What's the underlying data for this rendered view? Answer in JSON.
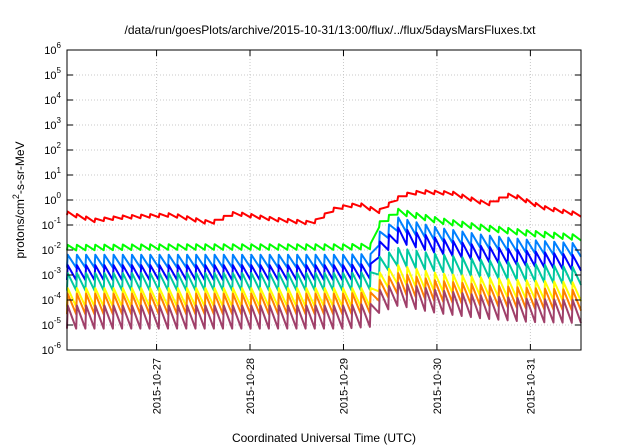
{
  "chart_data": {
    "type": "line",
    "title": "/data/run/goesPlots/archive/2015-10-31/13:00/flux/../flux/5daysMarsFluxes.txt",
    "xlabel": "Coordinated Universal Time (UTC)",
    "ylabel": {
      "base": "protons/cm",
      "sup": "2",
      "tail": "-s-sr-MeV"
    },
    "x_scale": "time",
    "xlim": [
      "2015-10-26T01:00",
      "2015-10-31T13:00"
    ],
    "x_ticks": [
      "2015-10-27",
      "2015-10-28",
      "2015-10-29",
      "2015-10-30",
      "2015-10-31"
    ],
    "y_scale": "log",
    "ylim": [
      1e-06,
      1000000.0
    ],
    "y_ticks": [
      {
        "base": "10",
        "exp": "-6"
      },
      {
        "base": "10",
        "exp": "-5"
      },
      {
        "base": "10",
        "exp": "-4"
      },
      {
        "base": "10",
        "exp": "-3"
      },
      {
        "base": "10",
        "exp": "-2"
      },
      {
        "base": "10",
        "exp": "-1"
      },
      {
        "base": "10",
        "exp": "0"
      },
      {
        "base": "10",
        "exp": "1"
      },
      {
        "base": "10",
        "exp": "2"
      },
      {
        "base": "10",
        "exp": "3"
      },
      {
        "base": "10",
        "exp": "4"
      },
      {
        "base": "10",
        "exp": "5"
      },
      {
        "base": "10",
        "exp": "6"
      }
    ],
    "grid": true,
    "legend": "none",
    "series": [
      {
        "color": "#ff0000",
        "points": [
          [
            "2015-10-26T01:00",
            0.35
          ],
          [
            "2015-10-26T08:00",
            0.18
          ],
          [
            "2015-10-26T15:00",
            0.24
          ],
          [
            "2015-10-27T04:00",
            0.3
          ],
          [
            "2015-10-27T14:00",
            0.14
          ],
          [
            "2015-10-27T20:00",
            0.35
          ],
          [
            "2015-10-28T06:00",
            0.2
          ],
          [
            "2015-10-28T16:00",
            0.14
          ],
          [
            "2015-10-28T22:00",
            0.55
          ],
          [
            "2015-10-29T04:00",
            0.8
          ],
          [
            "2015-10-29T09:00",
            0.4
          ],
          [
            "2015-10-29T15:00",
            1.8
          ],
          [
            "2015-10-29T20:00",
            2.5
          ],
          [
            "2015-10-30T04:00",
            2.2
          ],
          [
            "2015-10-30T13:00",
            0.8
          ],
          [
            "2015-10-30T19:00",
            2.0
          ],
          [
            "2015-10-31T03:00",
            0.6
          ],
          [
            "2015-10-31T13:00",
            0.3
          ]
        ],
        "teeth": 56,
        "tooth_ratio": 0.72
      },
      {
        "color": "#00ff00",
        "points": [
          [
            "2015-10-26T01:00",
            0.016
          ],
          [
            "2015-10-27T00:00",
            0.017
          ],
          [
            "2015-10-28T00:00",
            0.017
          ],
          [
            "2015-10-29T00:00",
            0.017
          ],
          [
            "2015-10-29T07:00",
            0.018
          ],
          [
            "2015-10-29T09:00",
            0.13
          ],
          [
            "2015-10-29T14:00",
            0.45
          ],
          [
            "2015-10-30T00:00",
            0.2
          ],
          [
            "2015-10-30T12:00",
            0.1
          ],
          [
            "2015-10-31T00:00",
            0.06
          ],
          [
            "2015-10-31T13:00",
            0.04
          ]
        ],
        "teeth": 56,
        "tooth_ratio": 0.6
      },
      {
        "color": "#0080ff",
        "points": [
          [
            "2015-10-26T01:00",
            0.0065
          ],
          [
            "2015-10-27T00:00",
            0.0065
          ],
          [
            "2015-10-28T00:00",
            0.0065
          ],
          [
            "2015-10-29T00:00",
            0.0065
          ],
          [
            "2015-10-29T07:00",
            0.007
          ],
          [
            "2015-10-29T09:00",
            0.05
          ],
          [
            "2015-10-29T14:00",
            0.2
          ],
          [
            "2015-10-30T00:00",
            0.08
          ],
          [
            "2015-10-30T12:00",
            0.04
          ],
          [
            "2015-10-31T00:00",
            0.025
          ],
          [
            "2015-10-31T13:00",
            0.018
          ]
        ],
        "teeth": 56,
        "tooth_ratio": 0.3
      },
      {
        "color": "#0000ff",
        "points": [
          [
            "2015-10-26T01:00",
            0.0025
          ],
          [
            "2015-10-27T00:00",
            0.0025
          ],
          [
            "2015-10-28T00:00",
            0.0025
          ],
          [
            "2015-10-29T00:00",
            0.0025
          ],
          [
            "2015-10-29T07:00",
            0.0028
          ],
          [
            "2015-10-29T09:00",
            0.02
          ],
          [
            "2015-10-29T14:00",
            0.08
          ],
          [
            "2015-10-30T00:00",
            0.03
          ],
          [
            "2015-10-30T12:00",
            0.014
          ],
          [
            "2015-10-31T00:00",
            0.009
          ],
          [
            "2015-10-31T13:00",
            0.006
          ]
        ],
        "teeth": 56,
        "tooth_ratio": 0.25
      },
      {
        "color": "#00c8a0",
        "points": [
          [
            "2015-10-26T01:00",
            0.0012
          ],
          [
            "2015-10-27T00:00",
            0.0012
          ],
          [
            "2015-10-28T00:00",
            0.0012
          ],
          [
            "2015-10-29T00:00",
            0.0012
          ],
          [
            "2015-10-29T07:00",
            0.0013
          ],
          [
            "2015-10-29T09:00",
            0.005
          ],
          [
            "2015-10-29T14:00",
            0.012
          ],
          [
            "2015-10-30T00:00",
            0.007
          ],
          [
            "2015-10-30T12:00",
            0.004
          ],
          [
            "2015-10-31T00:00",
            0.0028
          ],
          [
            "2015-10-31T13:00",
            0.002
          ]
        ],
        "teeth": 56,
        "tooth_ratio": 0.2
      },
      {
        "color": "#ffff00",
        "points": [
          [
            "2015-10-26T01:00",
            0.0003
          ],
          [
            "2015-10-27T00:00",
            0.0003
          ],
          [
            "2015-10-28T00:00",
            0.0003
          ],
          [
            "2015-10-29T00:00",
            0.0003
          ],
          [
            "2015-10-29T07:00",
            0.0003
          ],
          [
            "2015-10-29T09:00",
            0.0012
          ],
          [
            "2015-10-29T14:00",
            0.0025
          ],
          [
            "2015-10-30T00:00",
            0.0012
          ],
          [
            "2015-10-30T12:00",
            0.0008
          ],
          [
            "2015-10-31T00:00",
            0.0006
          ],
          [
            "2015-10-31T13:00",
            0.0005
          ]
        ],
        "teeth": 56,
        "tooth_ratio": 0.18
      },
      {
        "color": "#ff8000",
        "points": [
          [
            "2015-10-26T01:00",
            0.00018
          ],
          [
            "2015-10-27T00:00",
            0.00018
          ],
          [
            "2015-10-28T00:00",
            0.00018
          ],
          [
            "2015-10-29T00:00",
            0.00018
          ],
          [
            "2015-10-29T07:00",
            0.0002
          ],
          [
            "2015-10-29T09:00",
            0.0006
          ],
          [
            "2015-10-29T14:00",
            0.0012
          ],
          [
            "2015-10-30T00:00",
            0.0006
          ],
          [
            "2015-10-30T12:00",
            0.0004
          ],
          [
            "2015-10-31T00:00",
            0.0003
          ],
          [
            "2015-10-31T13:00",
            0.00025
          ]
        ],
        "teeth": 56,
        "tooth_ratio": 0.15
      },
      {
        "color": "#a0406a",
        "points": [
          [
            "2015-10-26T01:00",
            6e-05
          ],
          [
            "2015-10-27T00:00",
            6e-05
          ],
          [
            "2015-10-28T00:00",
            6e-05
          ],
          [
            "2015-10-29T00:00",
            6e-05
          ],
          [
            "2015-10-29T07:00",
            7e-05
          ],
          [
            "2015-10-29T09:00",
            0.00025
          ],
          [
            "2015-10-29T14:00",
            0.0005
          ],
          [
            "2015-10-30T00:00",
            0.00025
          ],
          [
            "2015-10-30T12:00",
            0.00015
          ],
          [
            "2015-10-31T00:00",
            0.00011
          ],
          [
            "2015-10-31T13:00",
            0.0001
          ]
        ],
        "teeth": 56,
        "tooth_ratio": 0.12
      }
    ]
  }
}
